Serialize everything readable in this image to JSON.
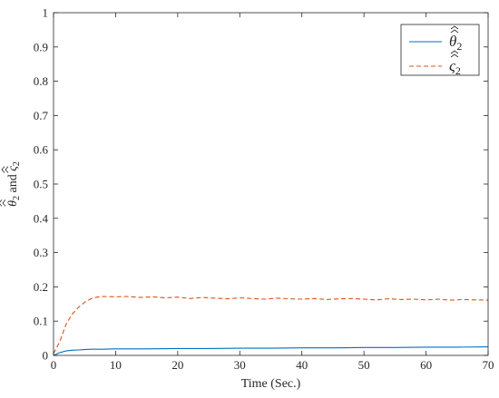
{
  "chart_data": {
    "type": "line",
    "xlabel": "Time (Sec.)",
    "ylabel_parts": {
      "theta": "θ",
      "sub1": "2",
      "and": " and ",
      "zeta": "ς",
      "sub2": "2"
    },
    "xlim": [
      0,
      70
    ],
    "ylim": [
      0,
      1
    ],
    "xticks": [
      0,
      10,
      20,
      30,
      40,
      50,
      60,
      70
    ],
    "yticks": [
      0,
      0.1,
      0.2,
      0.3,
      0.4,
      0.5,
      0.6,
      0.7,
      0.8,
      0.9,
      1
    ],
    "grid": false,
    "legend_position": "top-right",
    "series": [
      {
        "legend": {
          "symbol": "θ",
          "sub": "2"
        },
        "color": "#0072BD",
        "style": "solid",
        "x": [
          0,
          1,
          2,
          3,
          4,
          5,
          6,
          8,
          10,
          15,
          20,
          25,
          30,
          35,
          40,
          45,
          50,
          55,
          60,
          65,
          70
        ],
        "y": [
          0,
          0.008,
          0.013,
          0.015,
          0.016,
          0.017,
          0.018,
          0.018,
          0.019,
          0.019,
          0.02,
          0.02,
          0.021,
          0.021,
          0.022,
          0.022,
          0.023,
          0.023,
          0.024,
          0.024,
          0.025
        ]
      },
      {
        "legend": {
          "symbol": "ς",
          "sub": "2"
        },
        "color": "#D95319",
        "style": "dashed",
        "x": [
          0,
          1,
          2,
          3,
          4,
          5,
          6,
          7,
          8,
          10,
          12,
          14,
          16,
          18,
          20,
          22,
          24,
          26,
          28,
          30,
          32,
          34,
          36,
          38,
          40,
          42,
          44,
          46,
          48,
          50,
          52,
          54,
          56,
          58,
          60,
          62,
          64,
          66,
          68,
          70
        ],
        "y": [
          0.005,
          0.04,
          0.09,
          0.12,
          0.14,
          0.155,
          0.165,
          0.17,
          0.172,
          0.171,
          0.172,
          0.169,
          0.171,
          0.168,
          0.17,
          0.166,
          0.169,
          0.167,
          0.165,
          0.168,
          0.166,
          0.164,
          0.167,
          0.165,
          0.164,
          0.166,
          0.163,
          0.165,
          0.166,
          0.164,
          0.162,
          0.165,
          0.163,
          0.164,
          0.162,
          0.164,
          0.161,
          0.163,
          0.162,
          0.161
        ]
      }
    ]
  }
}
